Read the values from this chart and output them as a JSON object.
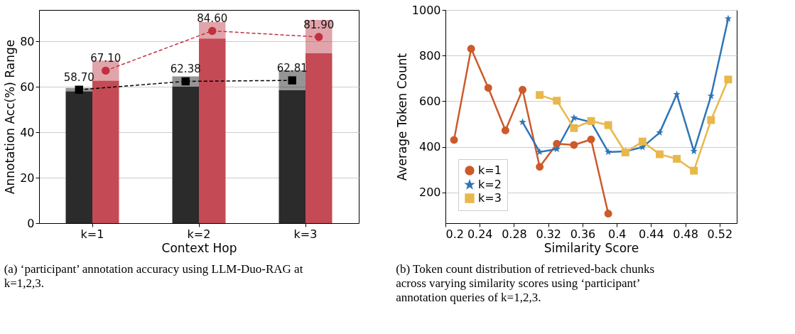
{
  "chart_data": [
    {
      "type": "bar",
      "categories": [
        "k=1",
        "k=2",
        "k=3"
      ],
      "xlabel": "Context Hop",
      "ylabel": "Annotation Acc(%) Range",
      "ylim": [
        0,
        93.8
      ],
      "yticks": [
        0,
        20,
        40,
        60,
        80
      ],
      "grid": "y",
      "annotations": [
        "(a) ‘participant’ annotation accuracy using LLM-Duo-RAG at k=1,2,3."
      ],
      "series": [
        {
          "type": "bar",
          "color": "#2b2b2b",
          "values": [
            58.0,
            60.0,
            58.5
          ],
          "errors": [
            [
              58.0,
              59.5
            ],
            [
              60.0,
              64.6
            ],
            [
              58.5,
              67.3
            ]
          ]
        },
        {
          "type": "bar",
          "color": "#c44a55",
          "values": [
            62.7,
            81.2,
            74.7
          ],
          "errors": [
            [
              62.7,
              71.5
            ],
            [
              81.2,
              88.5
            ],
            [
              74.7,
              89.4
            ]
          ]
        },
        {
          "type": "line",
          "color": "#000000",
          "marker": "square",
          "line_style": "dashed",
          "values": [
            58.7,
            62.38,
            62.81
          ],
          "value_labels": [
            "58.70",
            "62.38",
            "62.81"
          ]
        },
        {
          "type": "line",
          "color": "#c0303f",
          "marker": "circle",
          "line_style": "dashed",
          "values": [
            67.1,
            84.6,
            81.9
          ],
          "value_labels": [
            "67.10",
            "84.60",
            "81.90"
          ]
        }
      ]
    },
    {
      "type": "line",
      "xlabel": "Similarity Score",
      "ylabel": "Average Token Count",
      "xlim": [
        0.2,
        0.54
      ],
      "ylim": [
        65,
        1000
      ],
      "grid": "y",
      "legend": "bottom left",
      "xticks": [
        0.2,
        0.24,
        0.28,
        0.32,
        0.36,
        0.4,
        0.44,
        0.48,
        0.52
      ],
      "yticks": [
        200,
        400,
        600,
        800,
        1000
      ],
      "annotations": [
        "(b) Token count distribution of retrieved-back chunks across varying similarity scores using ‘participant’ annotation queries of k=1,2,3."
      ],
      "series": [
        {
          "name": "k=1",
          "color": "#cc5a2a",
          "marker": "circle",
          "x": [
            0.21,
            0.23,
            0.25,
            0.27,
            0.29,
            0.31,
            0.33,
            0.35,
            0.37,
            0.39
          ],
          "values": [
            430,
            830,
            658,
            472,
            650,
            312,
            413,
            408,
            432,
            107
          ]
        },
        {
          "name": "k=2",
          "color": "#2e75b6",
          "marker": "star",
          "x": [
            0.29,
            0.31,
            0.33,
            0.35,
            0.37,
            0.39,
            0.41,
            0.43,
            0.45,
            0.47,
            0.49,
            0.51,
            0.53
          ],
          "values": [
            508,
            377,
            390,
            527,
            508,
            377,
            380,
            398,
            462,
            630,
            380,
            623,
            962
          ]
        },
        {
          "name": "k=3",
          "color": "#e8b84a",
          "marker": "square",
          "x": [
            0.31,
            0.33,
            0.35,
            0.37,
            0.39,
            0.41,
            0.43,
            0.45,
            0.47,
            0.49,
            0.51,
            0.53
          ],
          "values": [
            627,
            602,
            482,
            513,
            495,
            375,
            423,
            367,
            347,
            295,
            517,
            695
          ]
        }
      ]
    }
  ]
}
